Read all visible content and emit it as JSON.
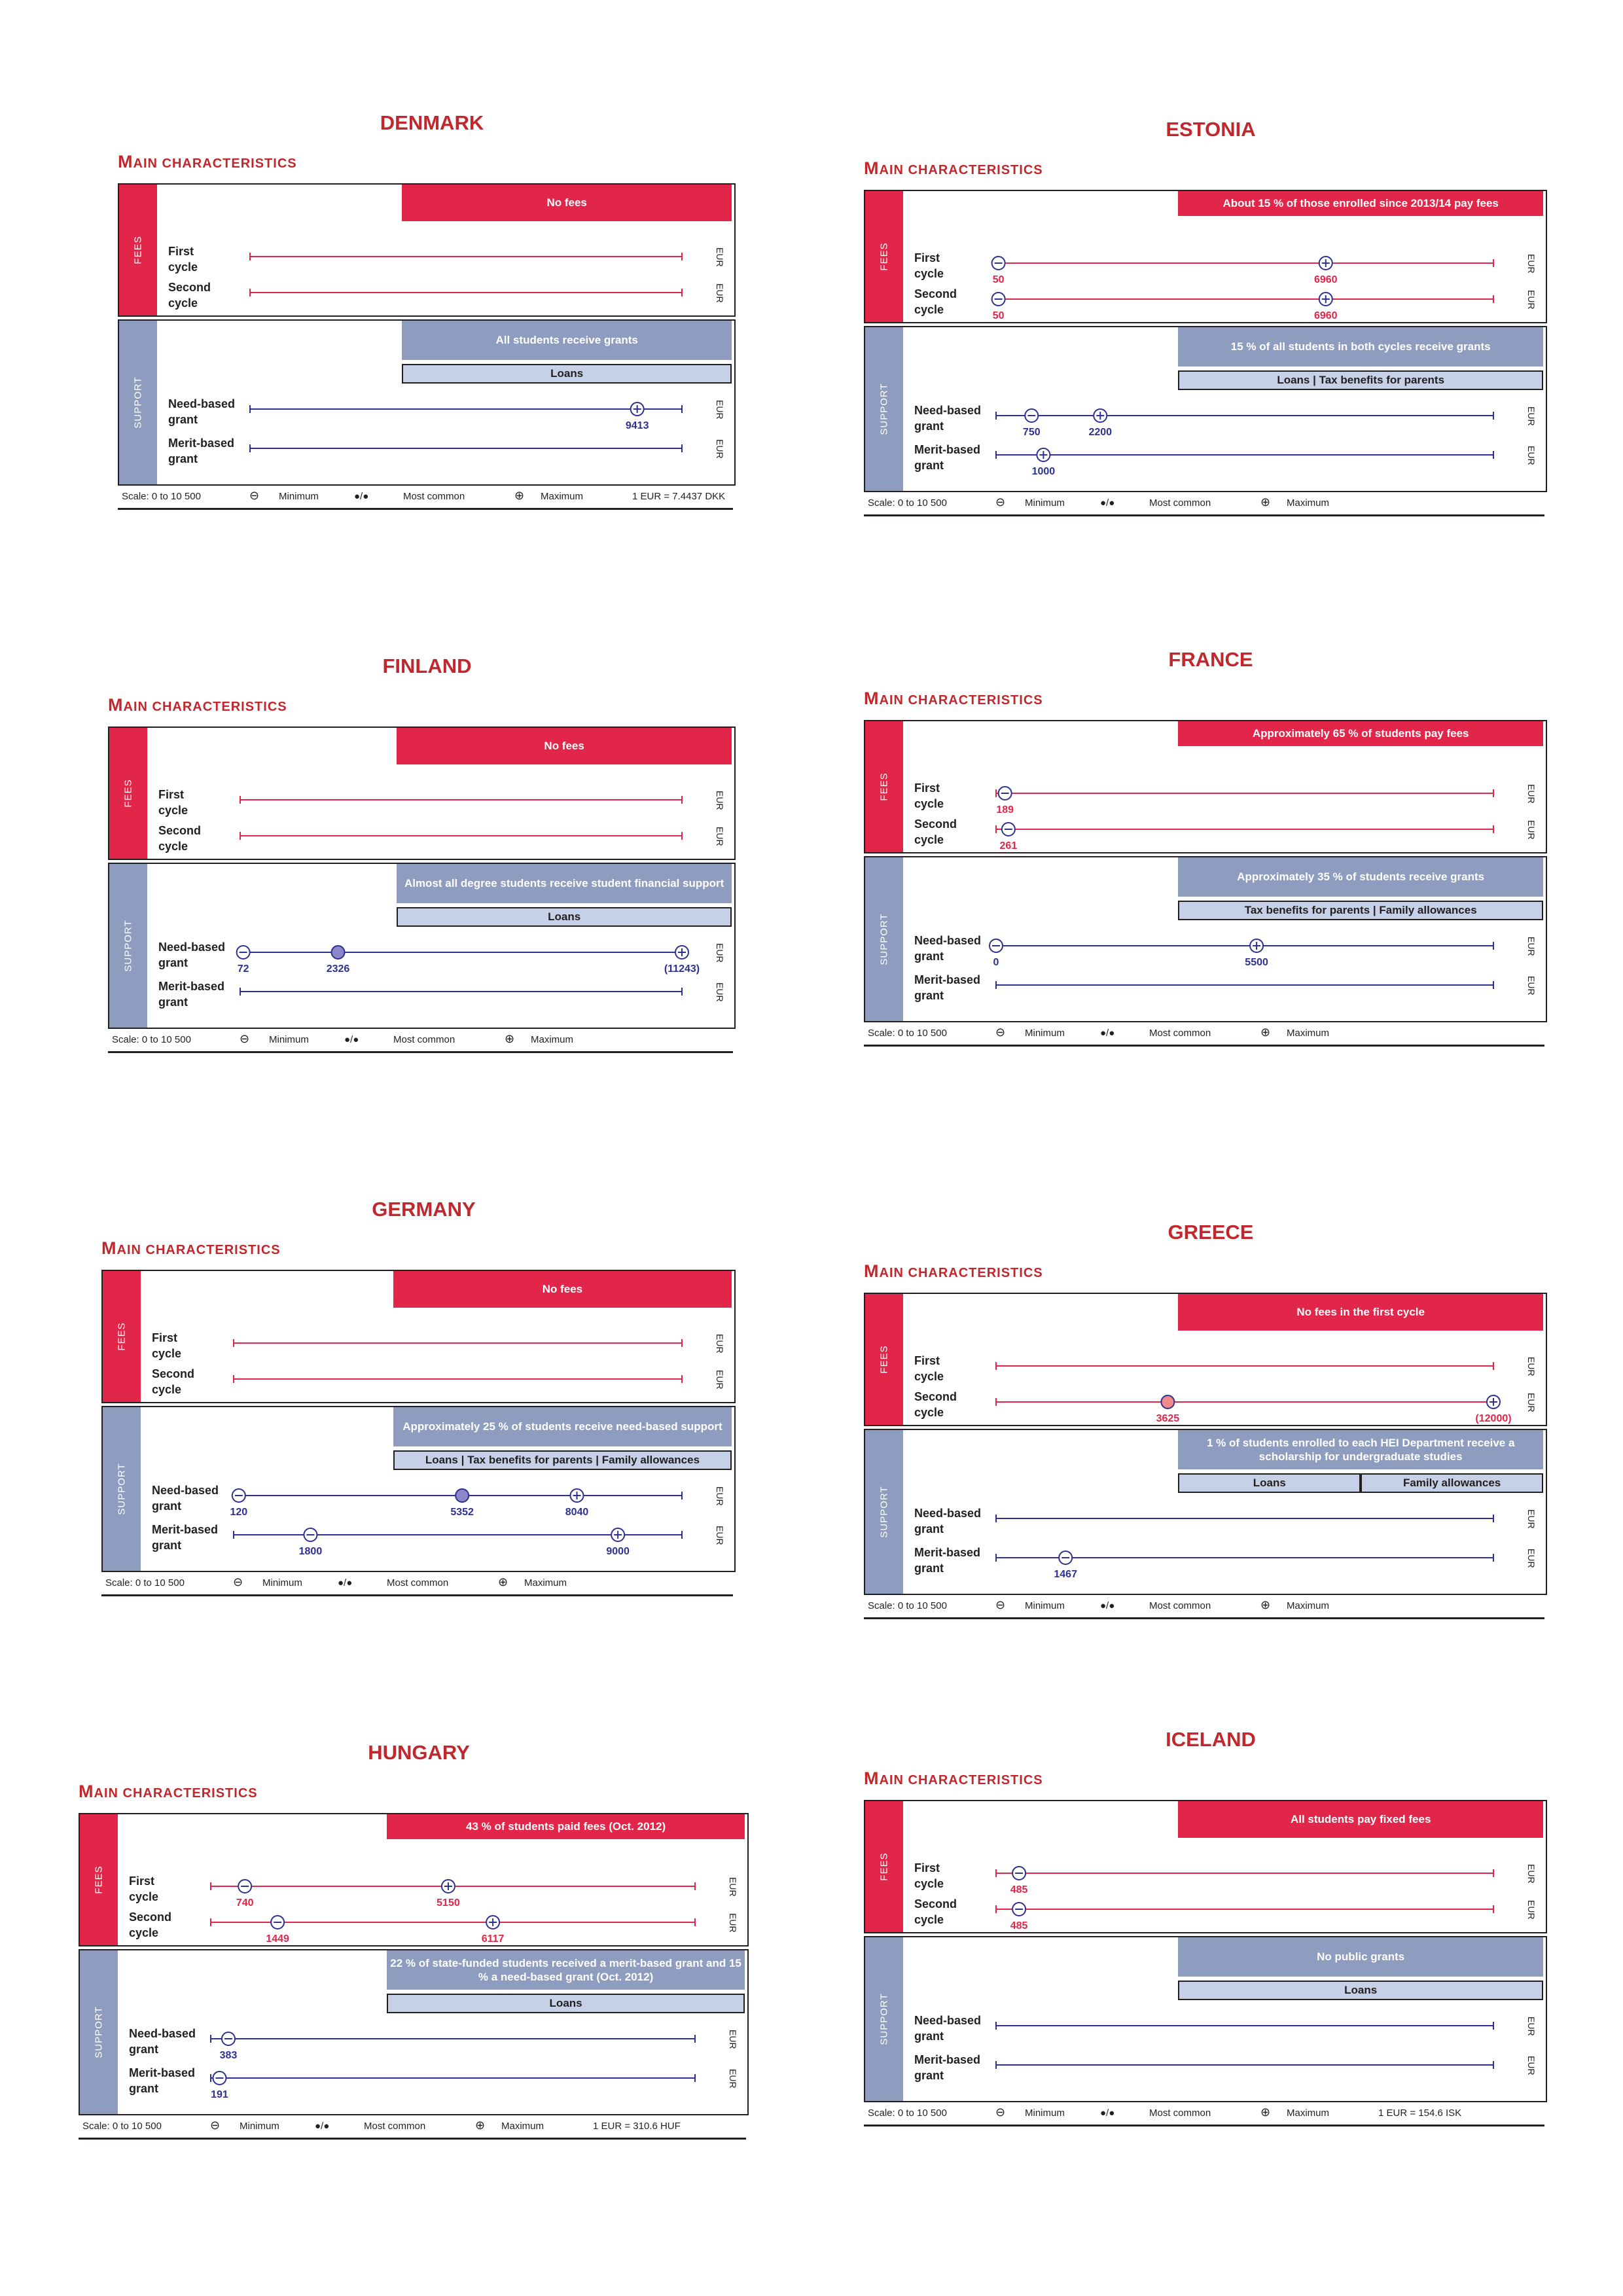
{
  "common": {
    "main_characteristics": "MAIN CHARACTERISTICS",
    "fees_label": "FEES",
    "support_label": "SUPPORT",
    "first_cycle": [
      "First",
      "cycle"
    ],
    "second_cycle": [
      "Second",
      "cycle"
    ],
    "need_grant": [
      "Need-based",
      "grant"
    ],
    "merit_grant": [
      "Merit-based",
      "grant"
    ],
    "eur": "EUR",
    "legend": {
      "scale": "Scale: 0 to 10 500",
      "minimum": "Minimum",
      "most_common": "Most common",
      "maximum": "Maximum",
      "min_symbol": "⊖",
      "max_symbol": "⊕",
      "common_symbol": "/"
    },
    "colors": {
      "fees_red": "#e1264a",
      "support_blue": "#8d9cbf",
      "light_blue": "#c6d0e6",
      "title_red": "#c1272d",
      "fee_line": "#e1264a",
      "sup_line": "#2e3192"
    }
  },
  "panels": [
    {
      "country": "DENMARK",
      "fees_banner": "No fees",
      "support_banners": [
        "All students receive grants"
      ],
      "support_light": [
        "Loans"
      ],
      "rows": {
        "first": {
          "min": null,
          "common": null,
          "max": null
        },
        "second": {
          "min": null,
          "common": null,
          "max": null
        },
        "need": {
          "min": null,
          "common": null,
          "max": 9413
        },
        "merit": {
          "min": null,
          "common": null,
          "max": null
        }
      },
      "need_label": "Need-based grant",
      "exchange": "1 EUR = 7.4437 DKK"
    },
    {
      "country": "ESTONIA",
      "fees_banner": "About 15 % of those enrolled since 2013/14 pay fees",
      "support_banners": [
        "15 % of all students in both cycles receive grants"
      ],
      "support_light": [
        "Loans | Tax benefits for parents"
      ],
      "rows": {
        "first": {
          "min": 50,
          "common": null,
          "max": 6960
        },
        "second": {
          "min": 50,
          "common": null,
          "max": 6960
        },
        "need": {
          "min": 750,
          "common": null,
          "max": 2200
        },
        "merit": {
          "min": null,
          "common": null,
          "max": 1000
        }
      },
      "need_label": "Need-based grant",
      "exchange": ""
    },
    {
      "country": "FINLAND",
      "fees_banner": "No fees",
      "support_banners": [
        "Almost all degree students receive student financial support"
      ],
      "support_light": [
        "Loans"
      ],
      "rows": {
        "first": {
          "min": null,
          "common": null,
          "max": null
        },
        "second": {
          "min": null,
          "common": null,
          "max": null
        },
        "need": {
          "min": 72,
          "common": 2326,
          "max": "(11243)"
        },
        "merit": {
          "min": null,
          "common": null,
          "max": null
        }
      },
      "need_label": "Need-based grant",
      "exchange": ""
    },
    {
      "country": "FRANCE",
      "fees_banner": "Approximately 65 % of students pay fees",
      "support_banners": [
        "Approximately 35 % of students receive grants"
      ],
      "support_light": [
        "Tax benefits for parents | Family allowances"
      ],
      "rows": {
        "first": {
          "min": 189,
          "common": null,
          "max": null
        },
        "second": {
          "min": 261,
          "common": null,
          "max": null
        },
        "need": {
          "min": 0,
          "common": null,
          "max": 5500
        },
        "merit": {
          "min": null,
          "common": null,
          "max": null
        }
      },
      "need_label": "Need-based grant",
      "exchange": ""
    },
    {
      "country": "GERMANY",
      "fees_banner": "No fees",
      "support_banners": [
        "Approximately 25 % of students receive need-based support"
      ],
      "support_light": [
        "Loans | Tax benefits for parents | Family allowances"
      ],
      "rows": {
        "first": {
          "min": null,
          "common": null,
          "max": null
        },
        "second": {
          "min": null,
          "common": null,
          "max": null
        },
        "need": {
          "min": 120,
          "common": 5352,
          "max": 8040
        },
        "merit": {
          "min": 1800,
          "common": null,
          "max": 9000
        }
      },
      "need_label": "Need-based grant (²)",
      "exchange": ""
    },
    {
      "country": "GREECE",
      "fees_banner": "No fees in the first cycle",
      "support_banners": [
        "1 % of students enrolled to each HEI Department receive a scholarship for undergraduate studies"
      ],
      "support_light": [
        "Loans",
        "Family allowances"
      ],
      "rows": {
        "first": {
          "min": null,
          "common": null,
          "max": null
        },
        "second": {
          "min": null,
          "common": 3625,
          "max": "(12000)"
        },
        "need": {
          "min": null,
          "common": null,
          "max": null
        },
        "merit": {
          "min": 1467,
          "common": null,
          "max": null
        }
      },
      "need_label": "Need-based grant",
      "exchange": ""
    },
    {
      "country": "HUNGARY",
      "fees_banner": "43 % of students paid fees (Oct. 2012)",
      "support_banners": [
        "22 % of state-funded students received a merit-based grant and 15 % a need-based grant (Oct. 2012)"
      ],
      "support_light": [
        "Loans"
      ],
      "rows": {
        "first": {
          "min": 740,
          "common": null,
          "max": 5150
        },
        "second": {
          "min": 1449,
          "common": null,
          "max": 6117
        },
        "need": {
          "min": 383,
          "common": null,
          "max": null
        },
        "merit": {
          "min": 191,
          "common": null,
          "max": null
        }
      },
      "need_label": "Need-based grant",
      "exchange": "1 EUR = 310.6 HUF"
    },
    {
      "country": "ICELAND",
      "fees_banner": "All students pay fixed fees",
      "support_banners": [
        "No public grants"
      ],
      "support_light": [
        "Loans"
      ],
      "rows": {
        "first": {
          "min": 485,
          "common": null,
          "max": null
        },
        "second": {
          "min": 485,
          "common": null,
          "max": null
        },
        "need": {
          "min": null,
          "common": null,
          "max": null
        },
        "merit": {
          "min": null,
          "common": null,
          "max": null
        }
      },
      "need_label": "Need-based grant",
      "exchange": "1 EUR = 154.6 ISK"
    }
  ]
}
